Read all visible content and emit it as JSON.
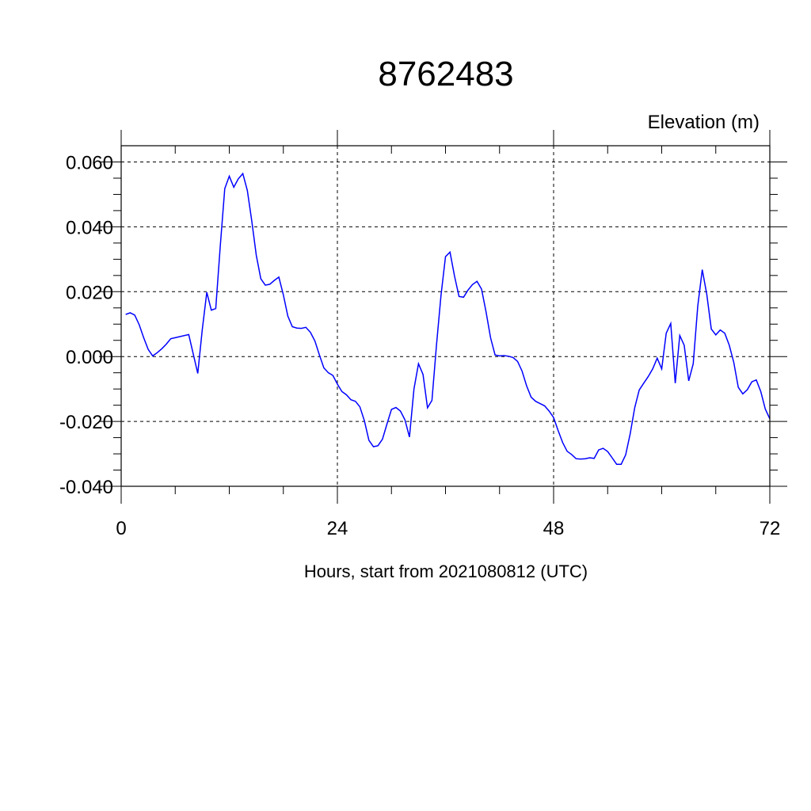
{
  "chart_data": {
    "type": "line",
    "title": "8762483",
    "subtitle": "Elevation (m)",
    "xlabel": "Hours, start from 2021080812 (UTC)",
    "ylabel": "",
    "xlim": [
      0,
      72
    ],
    "ylim": [
      -0.04,
      0.06
    ],
    "xticks": [
      0,
      24,
      48,
      72
    ],
    "xtick_labels": [
      "0",
      "24",
      "48",
      "72"
    ],
    "yticks": [
      -0.04,
      -0.02,
      0.0,
      0.02,
      0.04,
      0.06
    ],
    "ytick_labels": [
      "-0.040",
      "-0.020",
      "0.000",
      "0.020",
      "0.040",
      "0.060"
    ],
    "grid": true,
    "series": [
      {
        "color": "#0000ff",
        "x": [
          0.5,
          1.0,
          1.5,
          2.0,
          2.5,
          3.0,
          3.5,
          4.0,
          4.5,
          5.0,
          5.5,
          6.0,
          7.5,
          8.0,
          8.5,
          9.0,
          9.5,
          10.0,
          10.5,
          11.0,
          11.5,
          12.0,
          12.5,
          13.0,
          13.5,
          14.0,
          14.5,
          15.0,
          15.5,
          16.0,
          16.5,
          17.0,
          17.5,
          18.0,
          18.5,
          19.0,
          19.5,
          20.0,
          20.5,
          21.0,
          21.5,
          22.0,
          22.5,
          23.0,
          23.5,
          24.0,
          24.5,
          25.0,
          25.5,
          26.0,
          26.5,
          27.0,
          27.5,
          28.0,
          28.5,
          29.0,
          29.5,
          30.0,
          30.5,
          31.0,
          31.5,
          32.0,
          32.5,
          33.0,
          33.5,
          34.0,
          34.5,
          35.0,
          35.5,
          36.0,
          36.5,
          37.0,
          37.5,
          38.0,
          38.5,
          39.0,
          39.5,
          40.0,
          40.5,
          41.0,
          41.5,
          42.0,
          42.5,
          43.0,
          43.5,
          44.0,
          44.5,
          45.0,
          45.5,
          46.0,
          46.5,
          47.0,
          47.5,
          48.0,
          48.5,
          49.0,
          49.5,
          50.0,
          50.5,
          51.0,
          51.5,
          52.0,
          52.5,
          53.0,
          53.5,
          54.0,
          54.5,
          55.0,
          55.5,
          56.0,
          56.5,
          57.0,
          57.5,
          58.0,
          58.5,
          59.0,
          59.5,
          60.0,
          60.5,
          61.0,
          61.5,
          62.0,
          62.5,
          63.0,
          63.5,
          64.0,
          64.5,
          65.0,
          65.5,
          66.0,
          66.5,
          67.0,
          67.5,
          68.0,
          68.5,
          69.0,
          69.5,
          70.0,
          70.5,
          71.0,
          71.5,
          72.0
        ],
        "values": [
          0.013,
          0.0135,
          0.0128,
          0.0098,
          0.0058,
          0.0022,
          0.0002,
          0.0012,
          0.0024,
          0.0038,
          0.0055,
          0.0058,
          0.0068,
          0.0008,
          -0.0052,
          0.0083,
          0.0198,
          0.0143,
          0.0148,
          0.034,
          0.0518,
          0.0556,
          0.0522,
          0.0548,
          0.0564,
          0.0512,
          0.0418,
          0.0312,
          0.024,
          0.022,
          0.0223,
          0.0235,
          0.0245,
          0.019,
          0.0125,
          0.0092,
          0.0088,
          0.0087,
          0.009,
          0.0075,
          0.0048,
          0.0005,
          -0.0035,
          -0.005,
          -0.0058,
          -0.0085,
          -0.0108,
          -0.0118,
          -0.0133,
          -0.0138,
          -0.0155,
          -0.0198,
          -0.0258,
          -0.0278,
          -0.0275,
          -0.0255,
          -0.0208,
          -0.0163,
          -0.0157,
          -0.0168,
          -0.0195,
          -0.0248,
          -0.01,
          -0.0022,
          -0.0055,
          -0.0158,
          -0.0135,
          0.0035,
          0.0188,
          0.0308,
          0.0322,
          0.0248,
          0.0185,
          0.0183,
          0.0205,
          0.0222,
          0.0232,
          0.0208,
          0.0138,
          0.0058,
          0.0005,
          0.0002,
          0.0003,
          0.0001,
          -0.0003,
          -0.0015,
          -0.0045,
          -0.009,
          -0.0125,
          -0.0138,
          -0.0145,
          -0.0152,
          -0.0168,
          -0.0188,
          -0.0228,
          -0.0265,
          -0.0292,
          -0.0302,
          -0.0315,
          -0.0316,
          -0.0315,
          -0.0312,
          -0.0314,
          -0.0288,
          -0.0283,
          -0.0293,
          -0.0312,
          -0.0332,
          -0.0332,
          -0.0303,
          -0.0238,
          -0.0158,
          -0.0103,
          -0.0082,
          -0.0062,
          -0.0038,
          -0.0005,
          -0.0038,
          0.0072,
          0.0102,
          -0.0082,
          0.0065,
          0.0035,
          -0.0075,
          -0.0022,
          0.0155,
          0.0268,
          0.0192,
          0.0085,
          0.0067,
          0.0082,
          0.0072,
          0.0035,
          -0.0018,
          -0.0095,
          -0.0115,
          -0.0102,
          -0.0078,
          -0.0072,
          -0.0108,
          -0.0162,
          -0.0192
        ]
      }
    ]
  }
}
